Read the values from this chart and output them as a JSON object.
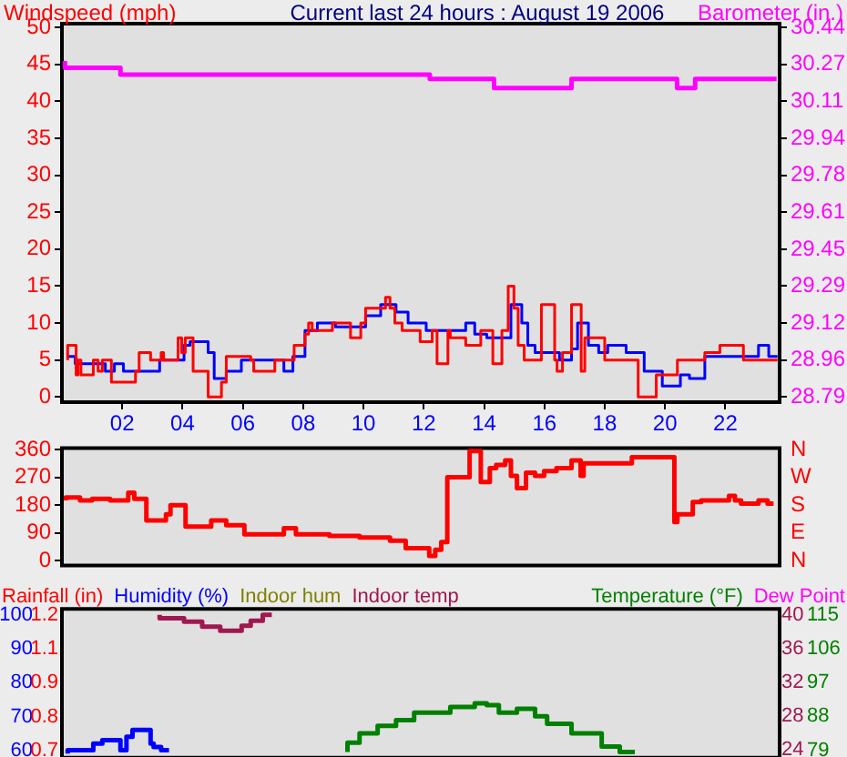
{
  "chart_data": [
    {
      "type": "step",
      "title": "Current last 24 hours : August 19 2006",
      "ylabel": "Windspeed (mph)",
      "y2label": "Barometer (in.)",
      "xlim": [
        0,
        23.8
      ],
      "xticks": [
        {
          "value": 2,
          "label": "02"
        },
        {
          "value": 4,
          "label": "04"
        },
        {
          "value": 6,
          "label": "06"
        },
        {
          "value": 8,
          "label": "08"
        },
        {
          "value": 10,
          "label": "10"
        },
        {
          "value": 12,
          "label": "12"
        },
        {
          "value": 14,
          "label": "14"
        },
        {
          "value": 16,
          "label": "16"
        },
        {
          "value": 18,
          "label": "18"
        },
        {
          "value": 20,
          "label": "20"
        },
        {
          "value": 22,
          "label": "22"
        }
      ],
      "ylim": [
        -0.7,
        50.5
      ],
      "yticks": [
        0,
        5,
        10,
        15,
        20,
        25,
        30,
        35,
        40,
        45,
        50
      ],
      "y2lim": [
        28.767,
        30.457
      ],
      "y2ticks": [
        {
          "value": 28.79,
          "label": "28.79"
        },
        {
          "value": 28.955,
          "label": "28.96"
        },
        {
          "value": 29.12,
          "label": "29.12"
        },
        {
          "value": 29.285,
          "label": "29.29"
        },
        {
          "value": 29.45,
          "label": "29.45"
        },
        {
          "value": 29.615,
          "label": "29.61"
        },
        {
          "value": 29.78,
          "label": "29.78"
        },
        {
          "value": 29.945,
          "label": "29.94"
        },
        {
          "value": 30.11,
          "label": "30.11"
        },
        {
          "value": 30.275,
          "label": "30.27"
        },
        {
          "value": 30.44,
          "label": "30.44"
        }
      ],
      "series": [
        {
          "color": "#ff0000",
          "x": [
            0.19,
            0.47,
            0.53,
            0.63,
            1.04,
            1.2,
            1.34,
            1.64,
            2.44,
            2.56,
            2.94,
            3.29,
            3.37,
            3.85,
            3.97,
            4.09,
            4.35,
            4.85,
            5.29,
            5.45,
            6.26,
            6.36,
            7.06,
            7.7,
            8.06,
            8.18,
            8.3,
            8.97,
            9.57,
            9.91,
            10.07,
            10.73,
            10.88,
            11.04,
            11.28,
            11.88,
            12.28,
            12.44,
            12.8,
            12.88,
            13.39,
            13.89,
            14.29,
            14.59,
            14.8,
            14.99,
            15.13,
            15.33,
            15.9,
            16.34,
            16.42,
            16.6,
            16.9,
            17.22,
            17.34,
            18.0,
            19.11,
            19.71,
            20.41,
            21.32,
            21.82,
            22.6,
            23.1,
            23.73
          ],
          "values": [
            5,
            7,
            3,
            5,
            3,
            5,
            3.5,
            5,
            2,
            3.5,
            6,
            5,
            6,
            5,
            8,
            6,
            8,
            3.5,
            0,
            2,
            5.5,
            5,
            3.5,
            5,
            7,
            8.5,
            10,
            9,
            10,
            8,
            10,
            12,
            13.5,
            12,
            10,
            9,
            7.5,
            9,
            4.5,
            9,
            8,
            7,
            9,
            4.5,
            9,
            15,
            12,
            7,
            5,
            12.5,
            5,
            3.5,
            6,
            12.5,
            3.5,
            8,
            5,
            0,
            3,
            5,
            6,
            7,
            5,
            5
          ]
        },
        {
          "color": "#0000ff",
          "x": [
            0.19,
            0.44,
            0.6,
            1.44,
            1.74,
            2.04,
            2.54,
            3.24,
            3.4,
            4.05,
            4.25,
            4.85,
            5.05,
            5.45,
            5.95,
            6.66,
            7.36,
            7.66,
            8.06,
            8.47,
            9.07,
            9.49,
            10.07,
            10.57,
            11.08,
            11.48,
            12.08,
            12.48,
            13.39,
            13.69,
            14.09,
            14.49,
            14.89,
            15.25,
            15.45,
            15.69,
            16.5,
            16.9,
            17.1,
            17.46,
            17.8,
            18.1,
            18.71,
            19.31,
            19.91,
            20.21,
            20.51,
            20.81,
            21.32,
            21.92,
            23.1,
            23.44,
            23.73
          ],
          "values": [
            5.5,
            5.5,
            4.5,
            4.5,
            3.5,
            4.5,
            3.5,
            3.5,
            5,
            5,
            7,
            7.5,
            6,
            2.5,
            3.5,
            5,
            5,
            3.5,
            5.5,
            9,
            10,
            9.5,
            9.5,
            11,
            12.5,
            11.5,
            10,
            9,
            9,
            10,
            8.5,
            8,
            8,
            12.5,
            10,
            7,
            6,
            5,
            6.5,
            10,
            7,
            6,
            7,
            6,
            3.5,
            1.5,
            1.5,
            3,
            2.5,
            5.5,
            5.5,
            7,
            5.5
          ]
        },
        {
          "color": "#ff00ff",
          "axis": "y2",
          "x": [
            0.1,
            1.94,
            12.2,
            14.33,
            16.9,
            20.4,
            21.0,
            22.2,
            23.7
          ],
          "values": [
            30.29,
            30.26,
            30.23,
            30.21,
            30.17,
            30.21,
            30.17,
            30.21,
            30.21
          ]
        }
      ]
    },
    {
      "type": "step",
      "tick_labels": "y",
      "xlim": [
        0,
        23.8
      ],
      "ylim": [
        -16,
        365
      ],
      "yticks": [
        0,
        90,
        180,
        270,
        360
      ],
      "annotations": [
        "N",
        "E",
        "S",
        "W",
        "N"
      ],
      "series": [
        {
          "color": "#ff0000",
          "x": [
            0.13,
            0.6,
            1.0,
            1.6,
            2.2,
            2.4,
            2.8,
            3.45,
            3.6,
            4.1,
            4.95,
            5.45,
            6.05,
            7.36,
            7.76,
            8.87,
            9.87,
            10.88,
            11.4,
            12.18,
            12.38,
            12.58,
            12.78,
            13.52,
            13.89,
            14.19,
            14.4,
            14.7,
            14.89,
            15.09,
            15.39,
            15.69,
            15.99,
            16.4,
            16.9,
            17.2,
            17.3,
            17.9,
            18.9,
            19.71,
            20.31,
            20.41,
            20.92,
            21.2,
            22.12,
            22.32,
            22.52,
            23.1,
            23.4,
            23.6
          ],
          "values": [
            195,
            205,
            195,
            200,
            195,
            220,
            200,
            130,
            150,
            180,
            110,
            130,
            115,
            85,
            105,
            85,
            80,
            75,
            65,
            40,
            15,
            35,
            60,
            270,
            355,
            255,
            300,
            310,
            325,
            275,
            235,
            285,
            275,
            290,
            300,
            325,
            275,
            315,
            315,
            335,
            335,
            125,
            150,
            190,
            195,
            210,
            195,
            185,
            195,
            185
          ]
        }
      ]
    },
    {
      "type": "step",
      "tick_labels": "y",
      "legend": "top",
      "xlim": [
        0,
        23.8
      ],
      "ylim": [
        57.8,
        101.8
      ],
      "yticks": [
        60,
        70,
        80,
        90,
        100
      ],
      "y2lim": [
        23.1,
        40.7
      ],
      "y2ticks": [
        24,
        28,
        32,
        36,
        40
      ],
      "y3lim": [
        77,
        116.6
      ],
      "y3ticks": [
        79,
        88,
        97,
        106,
        115
      ],
      "annotations": [
        "0.7",
        "0.8",
        "0.9",
        "1.1",
        "1.2"
      ],
      "series": [
        {
          "name": "Rainfall (in)",
          "color": "#ff0000"
        },
        {
          "name": "Humidity (%)",
          "color": "#0000ff",
          "x": [
            0.19,
            0.63,
            1.04,
            1.34,
            1.54,
            1.94,
            2.14,
            2.34,
            2.64,
            2.94,
            3.04,
            3.29,
            3.55
          ],
          "values": [
            59,
            60,
            60,
            62,
            63,
            63,
            60,
            64,
            66,
            66,
            62,
            61,
            60
          ]
        },
        {
          "name": "Indoor hum",
          "color": "#808000"
        },
        {
          "name": "Indoor temp",
          "color": "#a01850",
          "axis": "y2",
          "x": [
            3.24,
            4.05,
            4.65,
            5.25,
            5.96,
            6.26,
            6.66,
            6.96
          ],
          "values": [
            40,
            39.6,
            39.2,
            38.6,
            38.1,
            38.7,
            39.3,
            40
          ]
        },
        {
          "name": "Temperature (°F)",
          "color": "#008000",
          "axis": "y3",
          "x": [
            9.47,
            9.87,
            10.47,
            11.08,
            11.68,
            12.28,
            12.88,
            13.69,
            14.09,
            14.49,
            15.09,
            15.69,
            16.09,
            16.9,
            17.9,
            18.5,
            19.0
          ],
          "values": [
            78.5,
            81,
            83.5,
            85.5,
            87,
            89,
            89,
            90.5,
            91.5,
            91,
            89,
            90,
            88,
            86,
            83.5,
            80,
            78.5
          ]
        },
        {
          "name": "Dew Point",
          "color": "#ff00ff",
          "axis": "y3"
        }
      ]
    }
  ]
}
